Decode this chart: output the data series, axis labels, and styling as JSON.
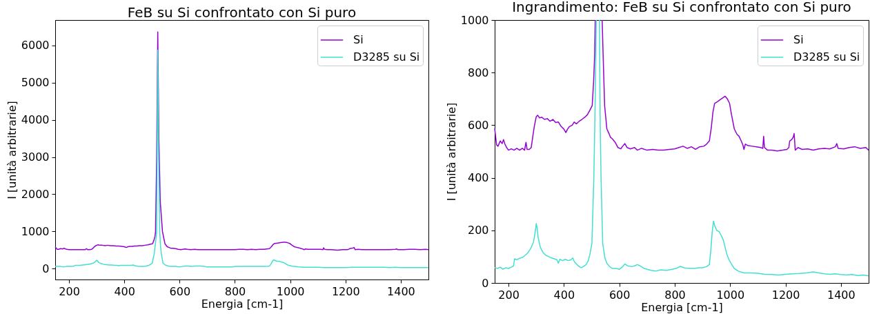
{
  "chart_data": [
    {
      "type": "line",
      "title": "FeB su Si confrontato con Si puro",
      "xlabel": "Energia [cm-1]",
      "ylabel": "I [unità arbitrarie]",
      "xlim": [
        150,
        1500
      ],
      "ylim": [
        -290,
        6680
      ],
      "xticks": [
        200,
        400,
        600,
        800,
        1000,
        1200,
        1400
      ],
      "yticks": [
        0,
        1000,
        2000,
        3000,
        4000,
        5000,
        6000
      ],
      "legend": "top right",
      "series": [
        {
          "name": "Si",
          "color": "#9400d3",
          "x": [
            150,
            153,
            157,
            162,
            170,
            177,
            182,
            187,
            193,
            200,
            210,
            220,
            230,
            240,
            250,
            258,
            263,
            267,
            275,
            282,
            288,
            293,
            300,
            305,
            312,
            320,
            330,
            340,
            350,
            360,
            370,
            380,
            390,
            400,
            407,
            413,
            420,
            430,
            437,
            445,
            455,
            465,
            475,
            485,
            495,
            502,
            507,
            511,
            513,
            517,
            521,
            525,
            530,
            538,
            542,
            547,
            555,
            562,
            568,
            575,
            585,
            595,
            605,
            612,
            620,
            628,
            640,
            655,
            665,
            680,
            700,
            720,
            740,
            760,
            780,
            800,
            815,
            830,
            845,
            860,
            875,
            890,
            905,
            915,
            925,
            932,
            938,
            944,
            955,
            965,
            975,
            982,
            990,
            998,
            1005,
            1015,
            1025,
            1032,
            1040,
            1046,
            1050,
            1055,
            1065,
            1080,
            1095,
            1110,
            1118,
            1121,
            1124,
            1135,
            1150,
            1170,
            1190,
            1205,
            1212,
            1215,
            1222,
            1228,
            1231,
            1233,
            1235,
            1245,
            1260,
            1280,
            1300,
            1320,
            1340,
            1360,
            1380,
            1385,
            1390,
            1410,
            1430,
            1450,
            1470,
            1490,
            1500
          ],
          "values": [
            590,
            560,
            520,
            520,
            540,
            530,
            550,
            530,
            520,
            510,
            510,
            510,
            510,
            510,
            510,
            510,
            540,
            510,
            510,
            520,
            560,
            600,
            630,
            640,
            630,
            630,
            620,
            630,
            620,
            620,
            610,
            610,
            600,
            590,
            570,
            590,
            600,
            600,
            610,
            610,
            620,
            620,
            630,
            640,
            660,
            670,
            760,
            870,
            1000,
            3000,
            6360,
            3500,
            1800,
            1000,
            850,
            670,
            590,
            570,
            550,
            550,
            540,
            520,
            510,
            520,
            530,
            520,
            510,
            520,
            510,
            510,
            510,
            510,
            510,
            510,
            510,
            510,
            520,
            520,
            510,
            520,
            510,
            520,
            520,
            530,
            540,
            590,
            650,
            680,
            690,
            700,
            710,
            710,
            700,
            680,
            640,
            590,
            570,
            560,
            540,
            530,
            510,
            530,
            520,
            520,
            520,
            520,
            510,
            560,
            520,
            510,
            510,
            500,
            510,
            510,
            520,
            540,
            550,
            560,
            570,
            540,
            510,
            520,
            510,
            510,
            510,
            510,
            510,
            510,
            520,
            530,
            510,
            510,
            520,
            520,
            510,
            520,
            510
          ]
        },
        {
          "name": "D3285 su Si",
          "color": "#40e0d0",
          "x": [
            150,
            160,
            170,
            180,
            190,
            200,
            210,
            218,
            222,
            230,
            240,
            250,
            260,
            270,
            280,
            290,
            296,
            300,
            303,
            307,
            315,
            325,
            335,
            345,
            355,
            365,
            375,
            380,
            385,
            395,
            405,
            415,
            425,
            432,
            438,
            445,
            455,
            462,
            470,
            480,
            488,
            494,
            501,
            508,
            513,
            517,
            519,
            521,
            524,
            528,
            531,
            534,
            540,
            548,
            555,
            565,
            575,
            590,
            600,
            610,
            620,
            630,
            645,
            655,
            665,
            675,
            690,
            700,
            715,
            730,
            750,
            770,
            790,
            805,
            820,
            835,
            850,
            870,
            885,
            900,
            915,
            925,
            930,
            935,
            940,
            945,
            952,
            960,
            968,
            975,
            982,
            988,
            995,
            1005,
            1015,
            1030,
            1050,
            1075,
            1100,
            1125,
            1150,
            1175,
            1200,
            1225,
            1250,
            1275,
            1300,
            1320,
            1340,
            1360,
            1380,
            1400,
            1420,
            1440,
            1460,
            1480,
            1500
          ],
          "values": [
            60,
            60,
            60,
            50,
            60,
            60,
            60,
            70,
            90,
            90,
            90,
            100,
            110,
            120,
            130,
            160,
            190,
            230,
            210,
            170,
            140,
            120,
            110,
            100,
            100,
            90,
            90,
            80,
            90,
            90,
            90,
            90,
            90,
            100,
            80,
            70,
            60,
            60,
            60,
            70,
            90,
            110,
            150,
            400,
            700,
            1000,
            3000,
            5870,
            3000,
            1000,
            600,
            400,
            150,
            100,
            80,
            60,
            60,
            60,
            50,
            60,
            70,
            70,
            60,
            70,
            70,
            70,
            60,
            50,
            50,
            50,
            50,
            50,
            50,
            60,
            60,
            60,
            60,
            60,
            60,
            60,
            60,
            70,
            120,
            190,
            240,
            220,
            200,
            200,
            180,
            170,
            140,
            110,
            90,
            70,
            60,
            50,
            40,
            40,
            40,
            30,
            30,
            30,
            30,
            40,
            40,
            40,
            40,
            40,
            40,
            30,
            40,
            30,
            30,
            30,
            30,
            30,
            30
          ]
        }
      ]
    },
    {
      "type": "line",
      "title": "Ingrandimento: FeB su Si confrontato con Si puro",
      "xlabel": "Energia [cm-1]",
      "ylabel": "I [unità arbitrarie]",
      "xlim": [
        150,
        1500
      ],
      "ylim": [
        0,
        1000
      ],
      "xticks": [
        200,
        400,
        600,
        800,
        1000,
        1200,
        1400
      ],
      "yticks": [
        0,
        200,
        400,
        600,
        800,
        1000
      ],
      "legend": "top right",
      "series": [
        {
          "name": "Si",
          "color": "#9400d3",
          "x": [
            150,
            153,
            157,
            162,
            170,
            177,
            182,
            187,
            193,
            200,
            210,
            220,
            230,
            240,
            250,
            258,
            263,
            267,
            275,
            282,
            288,
            293,
            300,
            305,
            312,
            320,
            330,
            340,
            350,
            360,
            370,
            380,
            390,
            400,
            407,
            413,
            420,
            430,
            437,
            445,
            455,
            465,
            475,
            485,
            495,
            502,
            507,
            511,
            513,
            517,
            521,
            525,
            530,
            538,
            542,
            547,
            555,
            562,
            568,
            575,
            585,
            595,
            605,
            612,
            620,
            628,
            640,
            655,
            665,
            680,
            700,
            720,
            740,
            760,
            780,
            800,
            815,
            830,
            845,
            860,
            875,
            890,
            905,
            915,
            925,
            932,
            938,
            944,
            955,
            965,
            975,
            982,
            990,
            998,
            1005,
            1015,
            1025,
            1032,
            1040,
            1046,
            1050,
            1055,
            1065,
            1080,
            1095,
            1110,
            1118,
            1121,
            1124,
            1135,
            1150,
            1170,
            1190,
            1205,
            1212,
            1215,
            1222,
            1228,
            1231,
            1233,
            1235,
            1245,
            1260,
            1280,
            1300,
            1320,
            1340,
            1360,
            1380,
            1385,
            1390,
            1410,
            1430,
            1450,
            1470,
            1490,
            1500
          ],
          "values": [
            588,
            560,
            525,
            520,
            540,
            530,
            545,
            528,
            515,
            505,
            510,
            505,
            512,
            505,
            512,
            505,
            535,
            508,
            508,
            515,
            560,
            595,
            632,
            638,
            628,
            630,
            622,
            625,
            615,
            622,
            610,
            612,
            595,
            585,
            572,
            585,
            595,
            600,
            612,
            605,
            615,
            622,
            630,
            640,
            660,
            674,
            761,
            866,
            1000,
            null,
            null,
            null,
            null,
            1000,
            850,
            674,
            586,
            570,
            554,
            548,
            535,
            515,
            510,
            520,
            530,
            515,
            510,
            515,
            505,
            512,
            505,
            508,
            505,
            505,
            508,
            510,
            515,
            520,
            512,
            518,
            508,
            518,
            520,
            528,
            540,
            590,
            650,
            683,
            690,
            698,
            705,
            710,
            700,
            683,
            640,
            586,
            565,
            558,
            540,
            525,
            508,
            528,
            522,
            520,
            518,
            515,
            512,
            558,
            515,
            505,
            505,
            502,
            505,
            508,
            515,
            540,
            545,
            555,
            568,
            540,
            505,
            515,
            508,
            510,
            505,
            510,
            512,
            510,
            518,
            530,
            512,
            510,
            515,
            518,
            512,
            515,
            505
          ]
        },
        {
          "name": "D3285 su Si",
          "color": "#40e0d0",
          "x": [
            150,
            160,
            170,
            180,
            190,
            200,
            210,
            218,
            222,
            230,
            240,
            250,
            260,
            270,
            280,
            290,
            296,
            300,
            303,
            307,
            315,
            325,
            335,
            345,
            355,
            365,
            375,
            380,
            385,
            395,
            405,
            415,
            425,
            432,
            438,
            445,
            455,
            462,
            470,
            480,
            488,
            494,
            501,
            508,
            513,
            517,
            519,
            521,
            524,
            528,
            531,
            534,
            540,
            548,
            555,
            565,
            575,
            590,
            600,
            610,
            620,
            630,
            645,
            655,
            665,
            675,
            690,
            700,
            715,
            730,
            750,
            770,
            790,
            805,
            820,
            835,
            850,
            870,
            885,
            900,
            915,
            925,
            930,
            935,
            940,
            945,
            952,
            960,
            968,
            975,
            982,
            988,
            995,
            1005,
            1015,
            1030,
            1050,
            1075,
            1100,
            1125,
            1150,
            1175,
            1200,
            1225,
            1250,
            1275,
            1300,
            1320,
            1340,
            1360,
            1380,
            1400,
            1420,
            1440,
            1460,
            1480,
            1500
          ],
          "values": [
            58,
            55,
            60,
            52,
            58,
            55,
            60,
            65,
            92,
            88,
            94,
            97,
            105,
            115,
            131,
            155,
            190,
            226,
            210,
            173,
            135,
            115,
            105,
            100,
            95,
            92,
            88,
            75,
            90,
            85,
            90,
            85,
            88,
            95,
            80,
            72,
            62,
            58,
            62,
            70,
            85,
            110,
            150,
            400,
            700,
            1000,
            null,
            null,
            null,
            1000,
            600,
            400,
            150,
            95,
            75,
            62,
            55,
            55,
            52,
            60,
            72,
            65,
            62,
            65,
            70,
            65,
            55,
            52,
            48,
            45,
            50,
            48,
            52,
            55,
            63,
            57,
            56,
            55,
            58,
            58,
            62,
            70,
            120,
            190,
            235,
            215,
            200,
            195,
            180,
            165,
            135,
            110,
            90,
            72,
            55,
            45,
            38,
            38,
            37,
            33,
            32,
            30,
            33,
            35,
            36,
            38,
            42,
            38,
            35,
            33,
            35,
            32,
            30,
            32,
            28,
            30,
            27
          ]
        }
      ]
    }
  ]
}
